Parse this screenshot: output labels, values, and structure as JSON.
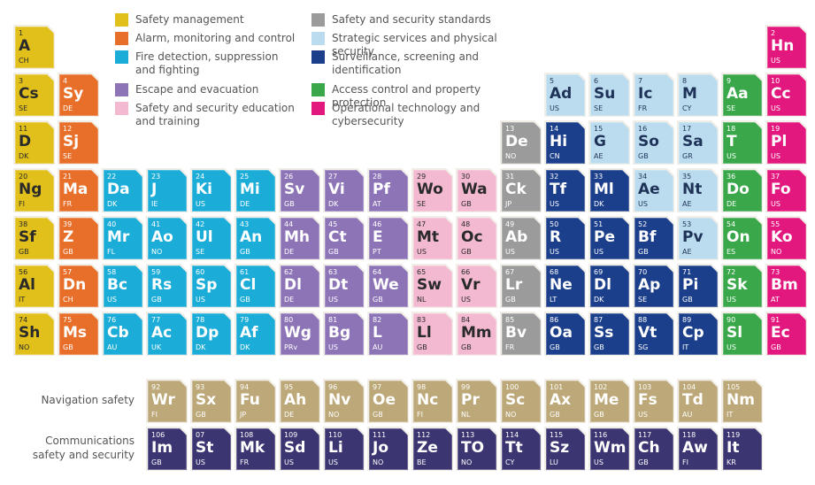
{
  "legend": [
    {
      "label": "Safety management",
      "color": "#e2c01c",
      "text_color": "#2a2a2a"
    },
    {
      "label": "Alarm, monitoring and control",
      "color": "#e86f2a",
      "text_color": "#ffffff"
    },
    {
      "label": "Fire detection, suppression and fighting",
      "color": "#1badd8",
      "text_color": "#ffffff"
    },
    {
      "label": "Escape and evacuation",
      "color": "#8d74b7",
      "text_color": "#ffffff"
    },
    {
      "label": "Safety and security education and training",
      "color": "#f3b9d1",
      "text_color": "#2a2a2a"
    },
    {
      "label": "Safety and security standards",
      "color": "#9b9b9b",
      "text_color": "#ffffff"
    },
    {
      "label": "Strategic services and physical security",
      "color": "#bbdcee",
      "text_color": "#1f3358"
    },
    {
      "label": "Surveillance, screening and identification",
      "color": "#1c3f8b",
      "text_color": "#ffffff"
    },
    {
      "label": "Access control and property protection",
      "color": "#3aa84a",
      "text_color": "#ffffff"
    },
    {
      "label": "Operational technology and cybersecurity",
      "color": "#e3187e",
      "text_color": "#ffffff"
    }
  ],
  "rows": [
    {
      "tiles": [
        {
          "number": "1",
          "symbol": "A",
          "country": "CH"
        },
        {
          "number": "2",
          "symbol": "Hn",
          "country": "US"
        }
      ]
    },
    {
      "tiles": [
        {
          "number": "3",
          "symbol": "Cs",
          "country": "SE"
        },
        {
          "number": "4",
          "symbol": "Sy",
          "country": "DE"
        },
        {
          "number": "5",
          "symbol": "Ad",
          "country": "US"
        },
        {
          "number": "6",
          "symbol": "Su",
          "country": "SE"
        },
        {
          "number": "7",
          "symbol": "Ic",
          "country": "FR"
        },
        {
          "number": "8",
          "symbol": "M",
          "country": "CY"
        },
        {
          "number": "9",
          "symbol": "Aa",
          "country": "SE"
        },
        {
          "number": "10",
          "symbol": "Cc",
          "country": "US"
        }
      ]
    },
    {
      "tiles": [
        {
          "number": "11",
          "symbol": "D",
          "country": "DK"
        },
        {
          "number": "12",
          "symbol": "Sj",
          "country": "SE"
        },
        {
          "number": "13",
          "symbol": "De",
          "country": "NO"
        },
        {
          "number": "14",
          "symbol": "Hi",
          "country": "CN"
        },
        {
          "number": "15",
          "symbol": "G",
          "country": "AE"
        },
        {
          "number": "16",
          "symbol": "So",
          "country": "GB"
        },
        {
          "number": "17",
          "symbol": "Sa",
          "country": "GR"
        },
        {
          "number": "18",
          "symbol": "T",
          "country": "US"
        },
        {
          "number": "19",
          "symbol": "Pl",
          "country": "US"
        }
      ]
    },
    {
      "tiles": [
        {
          "number": "20",
          "symbol": "Ng",
          "country": "FI"
        },
        {
          "number": "21",
          "symbol": "Ma",
          "country": "FR"
        },
        {
          "number": "22",
          "symbol": "Da",
          "country": "DK"
        },
        {
          "number": "23",
          "symbol": "J",
          "country": "IE"
        },
        {
          "number": "24",
          "symbol": "Ki",
          "country": "US"
        },
        {
          "number": "25",
          "symbol": "Mi",
          "country": "DE"
        },
        {
          "number": "26",
          "symbol": "Sv",
          "country": "GB"
        },
        {
          "number": "27",
          "symbol": "Vi",
          "country": "DK"
        },
        {
          "number": "28",
          "symbol": "Pf",
          "country": "AT"
        },
        {
          "number": "29",
          "symbol": "Wo",
          "country": "SE"
        },
        {
          "number": "30",
          "symbol": "Wa",
          "country": "GB"
        },
        {
          "number": "31",
          "symbol": "Ck",
          "country": "JP"
        },
        {
          "number": "32",
          "symbol": "Tf",
          "country": "US"
        },
        {
          "number": "33",
          "symbol": "Ml",
          "country": "DK"
        },
        {
          "number": "34",
          "symbol": "Ae",
          "country": "US"
        },
        {
          "number": "35",
          "symbol": "Nt",
          "country": "AE"
        },
        {
          "number": "36",
          "symbol": "Do",
          "country": "DE"
        },
        {
          "number": "37",
          "symbol": "Fo",
          "country": "US"
        }
      ]
    },
    {
      "tiles": [
        {
          "number": "38",
          "symbol": "Sf",
          "country": "GB"
        },
        {
          "number": "39",
          "symbol": "Z",
          "country": "GB"
        },
        {
          "number": "40",
          "symbol": "Mr",
          "country": "FL"
        },
        {
          "number": "41",
          "symbol": "Ao",
          "country": "NO"
        },
        {
          "number": "42",
          "symbol": "Ul",
          "country": "SE"
        },
        {
          "number": "43",
          "symbol": "An",
          "country": "GB"
        },
        {
          "number": "44",
          "symbol": "Mh",
          "country": "DE"
        },
        {
          "number": "45",
          "symbol": "Ct",
          "country": "GB"
        },
        {
          "number": "46",
          "symbol": "E",
          "country": "PT"
        },
        {
          "number": "47",
          "symbol": "Mt",
          "country": "US"
        },
        {
          "number": "48",
          "symbol": "Oc",
          "country": "GB"
        },
        {
          "number": "49",
          "symbol": "Ab",
          "country": "US"
        },
        {
          "number": "50",
          "symbol": "R",
          "country": "US"
        },
        {
          "number": "51",
          "symbol": "Pe",
          "country": "US"
        },
        {
          "number": "52",
          "symbol": "Bf",
          "country": "GB"
        },
        {
          "number": "53",
          "symbol": "Pv",
          "country": "AE"
        },
        {
          "number": "54",
          "symbol": "On",
          "country": "ES"
        },
        {
          "number": "55",
          "symbol": "Ko",
          "country": "NO"
        }
      ]
    },
    {
      "tiles": [
        {
          "number": "56",
          "symbol": "Al",
          "country": "IT"
        },
        {
          "number": "57",
          "symbol": "Dn",
          "country": "CH"
        },
        {
          "number": "58",
          "symbol": "Bc",
          "country": "US"
        },
        {
          "number": "59",
          "symbol": "Rs",
          "country": "GB"
        },
        {
          "number": "60",
          "symbol": "Sp",
          "country": "US"
        },
        {
          "number": "61",
          "symbol": "Cl",
          "country": "GB"
        },
        {
          "number": "62",
          "symbol": "Dl",
          "country": "DE"
        },
        {
          "number": "63",
          "symbol": "Dt",
          "country": "US"
        },
        {
          "number": "64",
          "symbol": "We",
          "country": "GB"
        },
        {
          "number": "65",
          "symbol": "Sw",
          "country": "NL"
        },
        {
          "number": "66",
          "symbol": "Vr",
          "country": "US"
        },
        {
          "number": "67",
          "symbol": "Lr",
          "country": "GB"
        },
        {
          "number": "68",
          "symbol": "Ne",
          "country": "LT"
        },
        {
          "number": "69",
          "symbol": "Dl",
          "country": "DK"
        },
        {
          "number": "70",
          "symbol": "Ap",
          "country": "SE"
        },
        {
          "number": "71",
          "symbol": "Pi",
          "country": "GB"
        },
        {
          "number": "72",
          "symbol": "Sk",
          "country": "US"
        },
        {
          "number": "73",
          "symbol": "Bm",
          "country": "AT"
        }
      ]
    },
    {
      "tiles": [
        {
          "number": "74",
          "symbol": "Sh",
          "country": "NO"
        },
        {
          "number": "75",
          "symbol": "Ms",
          "country": "GB"
        },
        {
          "number": "76",
          "symbol": "Cb",
          "country": "AU"
        },
        {
          "number": "77",
          "symbol": "Ac",
          "country": "UK"
        },
        {
          "number": "78",
          "symbol": "Dp",
          "country": "DK"
        },
        {
          "number": "79",
          "symbol": "Af",
          "country": "DK"
        },
        {
          "number": "80",
          "symbol": "Wg",
          "country": "PRv"
        },
        {
          "number": "81",
          "symbol": "Bg",
          "country": "US"
        },
        {
          "number": "82",
          "symbol": "L",
          "country": "AU"
        },
        {
          "number": "83",
          "symbol": "Ll",
          "country": "GB"
        },
        {
          "number": "84",
          "symbol": "Mm",
          "country": "GB"
        },
        {
          "number": "85",
          "symbol": "Bv",
          "country": "FR"
        },
        {
          "number": "86",
          "symbol": "Oa",
          "country": "GB"
        },
        {
          "number": "87",
          "symbol": "Ss",
          "country": "GB"
        },
        {
          "number": "88",
          "symbol": "Vt",
          "country": "SG"
        },
        {
          "number": "89",
          "symbol": "Cp",
          "country": "IT"
        },
        {
          "number": "90",
          "symbol": "Sl",
          "country": "US"
        },
        {
          "number": "91",
          "symbol": "Ec",
          "country": "GB"
        }
      ]
    },
    {
      "label": "Navigation safety",
      "color": "#bca878",
      "text_color": "#ffffff",
      "tiles": [
        {
          "number": "92",
          "symbol": "Wr",
          "country": "FI"
        },
        {
          "number": "93",
          "symbol": "Sx",
          "country": "GB"
        },
        {
          "number": "94",
          "symbol": "Fu",
          "country": "JP"
        },
        {
          "number": "95",
          "symbol": "Ah",
          "country": "DE"
        },
        {
          "number": "96",
          "symbol": "Nv",
          "country": "NO"
        },
        {
          "number": "97",
          "symbol": "Oe",
          "country": "GB"
        },
        {
          "number": "98",
          "symbol": "Nc",
          "country": "FI"
        },
        {
          "number": "99",
          "symbol": "Pr",
          "country": "NL"
        },
        {
          "number": "100",
          "symbol": "Sc",
          "country": "NO"
        },
        {
          "number": "101",
          "symbol": "Ax",
          "country": "GB"
        },
        {
          "number": "102",
          "symbol": "Me",
          "country": "GB"
        },
        {
          "number": "103",
          "symbol": "Fs",
          "country": "US"
        },
        {
          "number": "104",
          "symbol": "Td",
          "country": "AU"
        },
        {
          "number": "105",
          "symbol": "Nm",
          "country": "IT"
        }
      ]
    },
    {
      "label": "Communications safety and security",
      "color": "#3b3571",
      "text_color": "#ffffff",
      "tiles": [
        {
          "number": "106",
          "symbol": "Im",
          "country": "GB"
        },
        {
          "number": "07",
          "symbol": "St",
          "country": "US"
        },
        {
          "number": "108",
          "symbol": "Mk",
          "country": "FR"
        },
        {
          "number": "109",
          "symbol": "Sd",
          "country": "US"
        },
        {
          "number": "110",
          "symbol": "Li",
          "country": "US"
        },
        {
          "number": "111",
          "symbol": "Jo",
          "country": "NO"
        },
        {
          "number": "112",
          "symbol": "Ze",
          "country": "BE"
        },
        {
          "number": "113",
          "symbol": "TO",
          "country": "NO"
        },
        {
          "number": "114",
          "symbol": "Tt",
          "country": "CY"
        },
        {
          "number": "115",
          "symbol": "Sz",
          "country": "LU"
        },
        {
          "number": "116",
          "symbol": "Wm",
          "country": "US"
        },
        {
          "number": "117",
          "symbol": "Ch",
          "country": "GB"
        },
        {
          "number": "118",
          "symbol": "Aw",
          "country": "FI"
        },
        {
          "number": "119",
          "symbol": "It",
          "country": "KR"
        }
      ]
    }
  ]
}
